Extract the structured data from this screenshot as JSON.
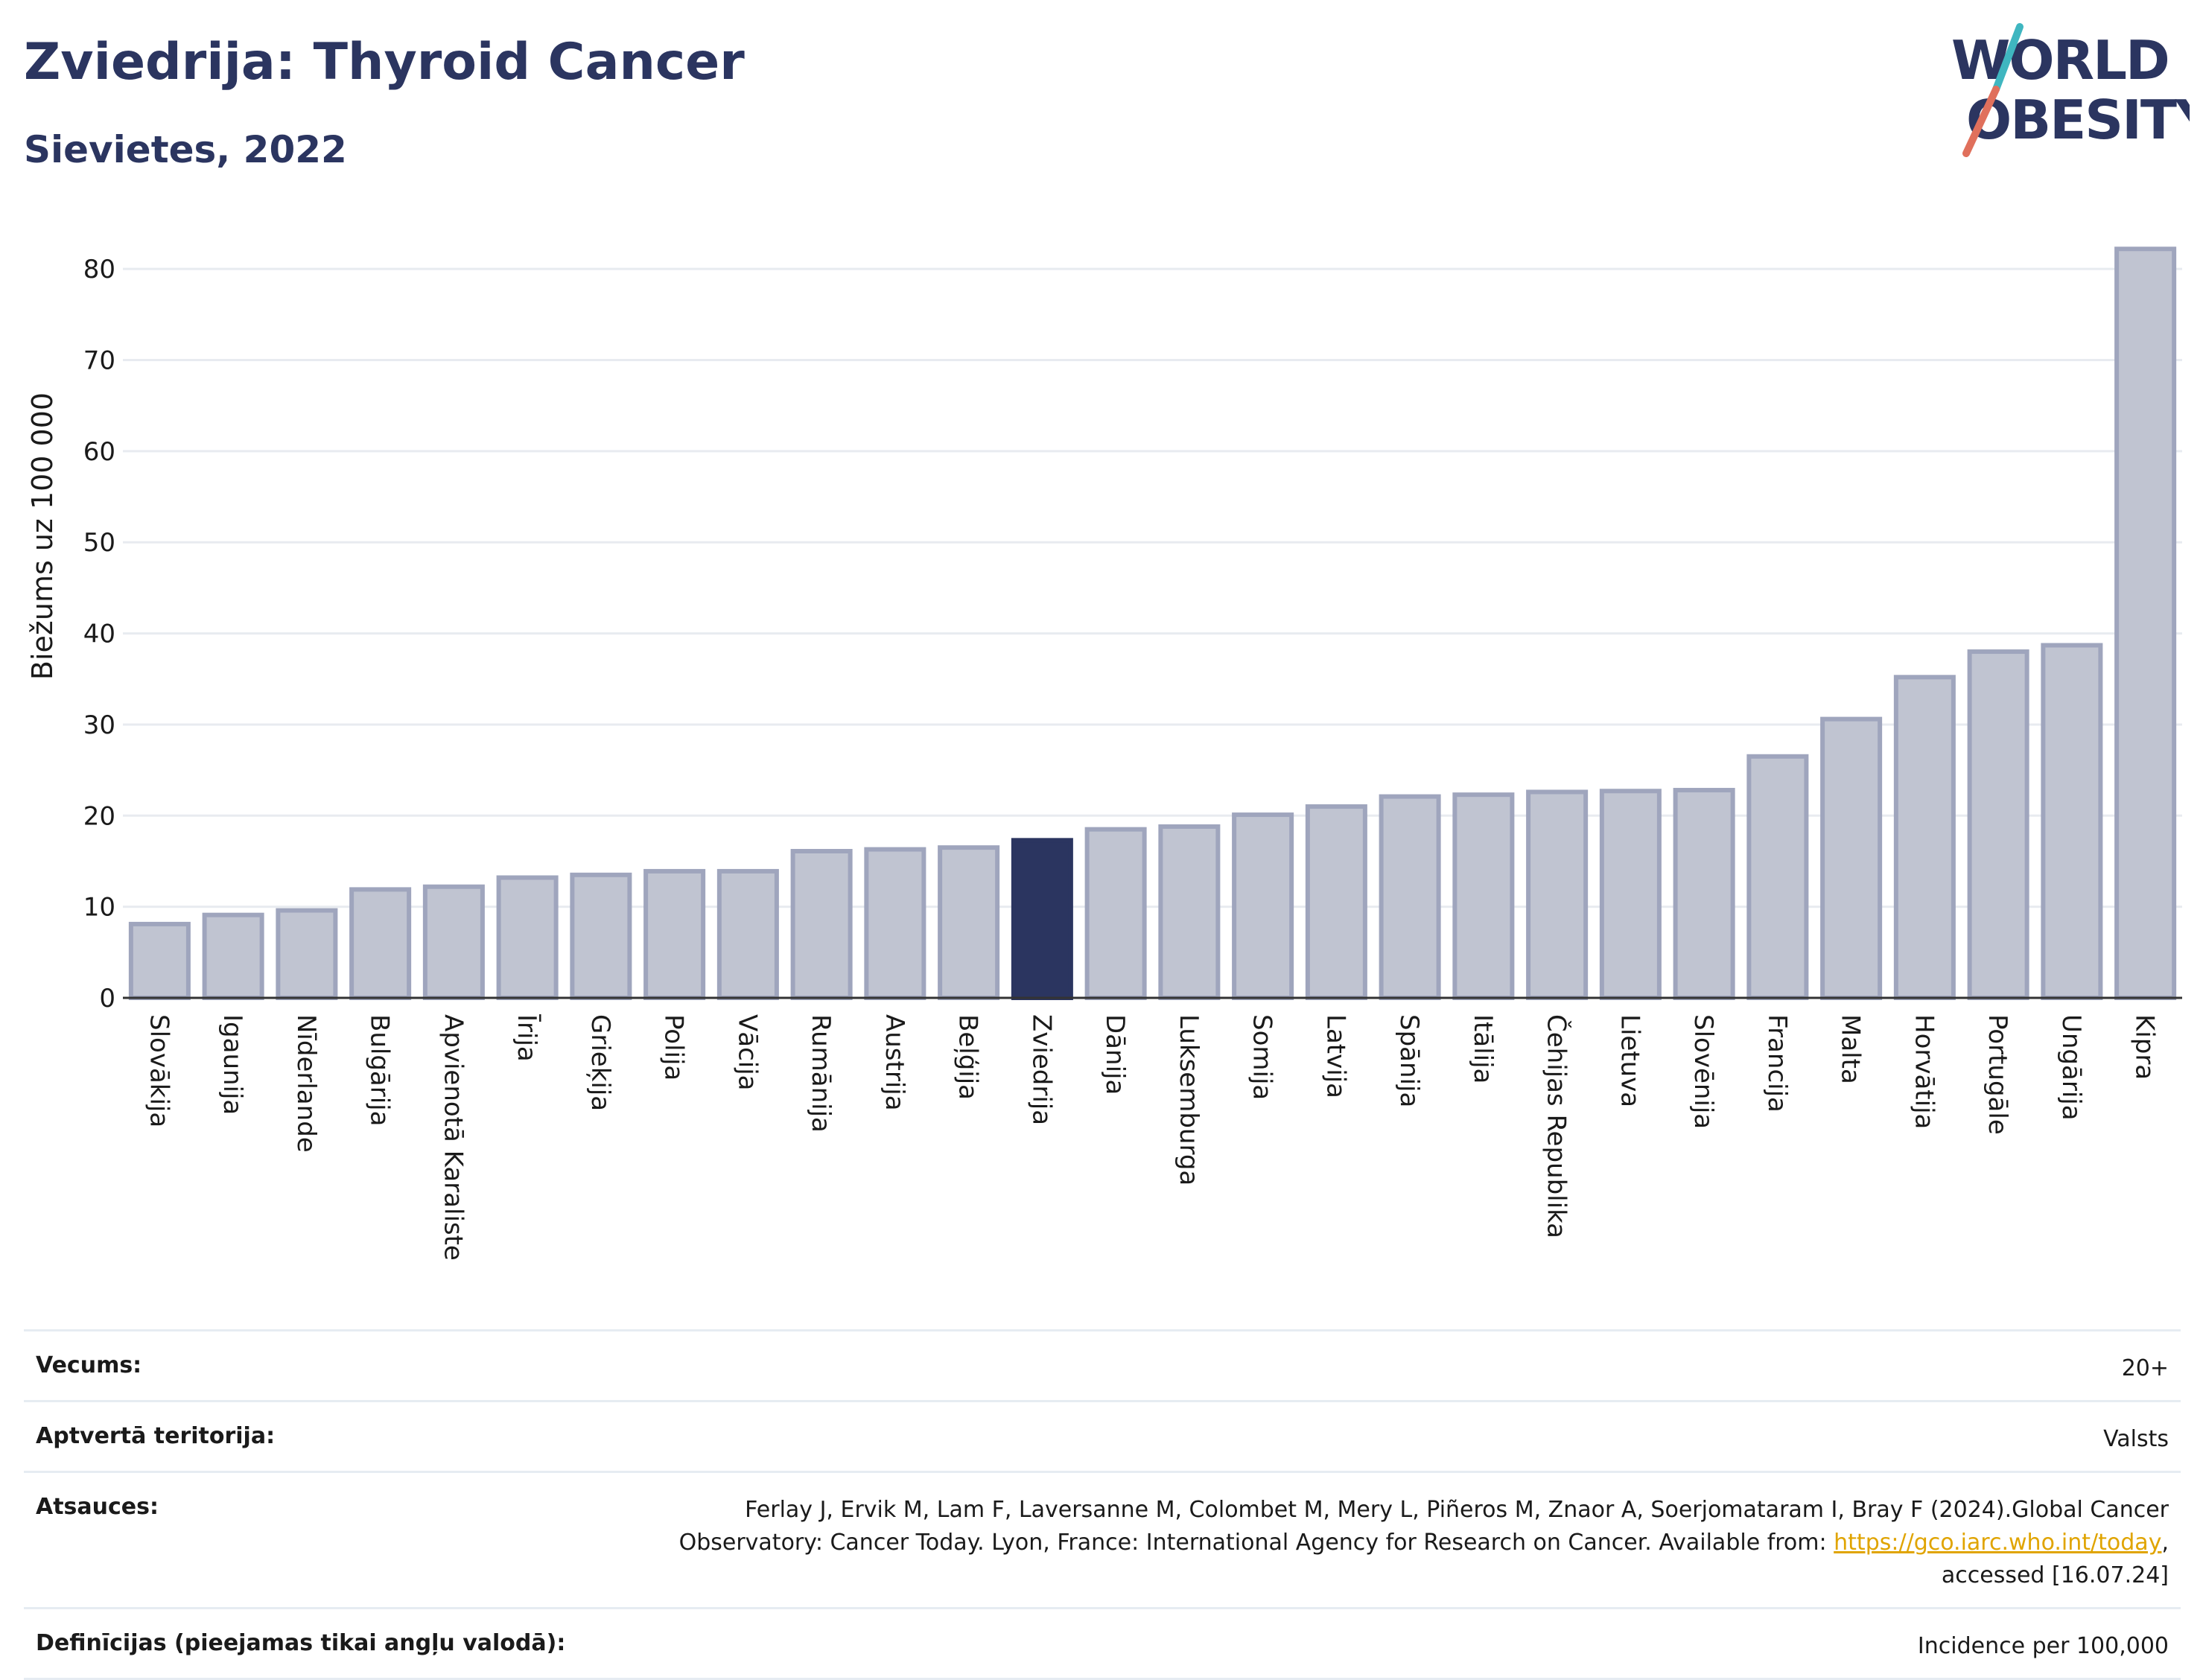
{
  "header": {
    "title": "Zviedrija: Thyroid Cancer",
    "subtitle": "Sievietes, 2022"
  },
  "logo": {
    "line1": "WORLD",
    "line2": "OBESITY"
  },
  "colors": {
    "bar": "#c0c4d1",
    "bar_border": "#9fa5bd",
    "highlight": "#2b3560",
    "grid": "#e8ebf0",
    "axis": "#333333"
  },
  "chart_data": {
    "type": "bar",
    "ylabel": "Biežums uz 100 000",
    "ylim": [
      0,
      85
    ],
    "yticks": [
      0,
      10,
      20,
      30,
      40,
      50,
      60,
      70,
      80
    ],
    "highlight": "Zviedrija",
    "grid": true,
    "categories": [
      "Slovākija",
      "Igaunija",
      "Nīderlande",
      "Bulgārija",
      "Apvienotā Karaliste",
      "Īrija",
      "Grieķija",
      "Polija",
      "Vācija",
      "Rumānija",
      "Austrija",
      "Beļģija",
      "Zviedrija",
      "Dānija",
      "Luksemburga",
      "Somija",
      "Latvija",
      "Spānija",
      "Itālija",
      "Čehijas Republika",
      "Lietuva",
      "Slovēnija",
      "Francija",
      "Malta",
      "Horvātija",
      "Portugāle",
      "Ungārija",
      "Kipra"
    ],
    "values": [
      8.1,
      9.1,
      9.6,
      11.9,
      12.2,
      13.2,
      13.5,
      13.9,
      13.9,
      16.1,
      16.3,
      16.5,
      17.3,
      18.5,
      18.8,
      20.1,
      21.0,
      22.1,
      22.3,
      22.6,
      22.7,
      22.8,
      26.5,
      30.6,
      35.2,
      38.0,
      38.7,
      82.2
    ]
  },
  "info": {
    "age_label": "Vecums:",
    "age_value": "20+",
    "coverage_label": "Aptvertā teritorija:",
    "coverage_value": "Valsts",
    "references_label": "Atsauces:",
    "references_text_1": "Ferlay J, Ervik M, Lam F, Laversanne M, Colombet M, Mery L, Piñeros M, Znaor A, Soerjomataram I, Bray F (2024).Global Cancer Observatory: Cancer Today. Lyon, France: International Agency for Research on Cancer. Available from: ",
    "references_link": "https://gco.iarc.who.int/today",
    "references_text_2": ", accessed [16.07.24]",
    "definitions_label": "Definīcijas (pieejamas tikai angļu valodā):",
    "definitions_value": "Incidence per 100,000"
  }
}
